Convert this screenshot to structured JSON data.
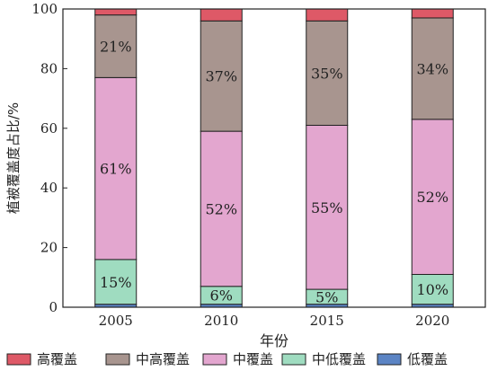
{
  "chart_data": {
    "type": "bar",
    "stacked": true,
    "categories": [
      "2005",
      "2010",
      "2015",
      "2020"
    ],
    "series": [
      {
        "name": "低覆盖",
        "color": "#5b84c4",
        "values": [
          1,
          1,
          1,
          1
        ]
      },
      {
        "name": "中低覆盖",
        "color": "#9fdcc0",
        "values": [
          15,
          6,
          5,
          10
        ]
      },
      {
        "name": "中覆盖",
        "color": "#e3a6cf",
        "values": [
          61,
          52,
          55,
          52
        ]
      },
      {
        "name": "中高覆盖",
        "color": "#a8958f",
        "values": [
          21,
          37,
          35,
          34
        ]
      },
      {
        "name": "高覆盖",
        "color": "#de5967",
        "values": [
          2,
          4,
          4,
          3
        ]
      }
    ],
    "segment_labels": [
      {
        "series": "中低覆盖",
        "category": "2005",
        "text": "15%"
      },
      {
        "series": "中低覆盖",
        "category": "2010",
        "text": "6%"
      },
      {
        "series": "中低覆盖",
        "category": "2015",
        "text": "5%"
      },
      {
        "series": "中低覆盖",
        "category": "2020",
        "text": "10%"
      },
      {
        "series": "中覆盖",
        "category": "2005",
        "text": "61%"
      },
      {
        "series": "中覆盖",
        "category": "2010",
        "text": "52%"
      },
      {
        "series": "中覆盖",
        "category": "2015",
        "text": "55%"
      },
      {
        "series": "中覆盖",
        "category": "2020",
        "text": "52%"
      },
      {
        "series": "中高覆盖",
        "category": "2005",
        "text": "21%"
      },
      {
        "series": "中高覆盖",
        "category": "2010",
        "text": "37%"
      },
      {
        "series": "中高覆盖",
        "category": "2015",
        "text": "35%"
      },
      {
        "series": "中高覆盖",
        "category": "2020",
        "text": "34%"
      }
    ],
    "xlabel": "年份",
    "ylabel": "植被覆盖度占比/%",
    "ylim": [
      0,
      100
    ],
    "yticks": [
      0,
      20,
      40,
      60,
      80,
      100
    ],
    "grid": false,
    "legend_position": "bottom",
    "legend_order": [
      "高覆盖",
      "中高覆盖",
      "中覆盖",
      "中低覆盖",
      "低覆盖"
    ]
  }
}
